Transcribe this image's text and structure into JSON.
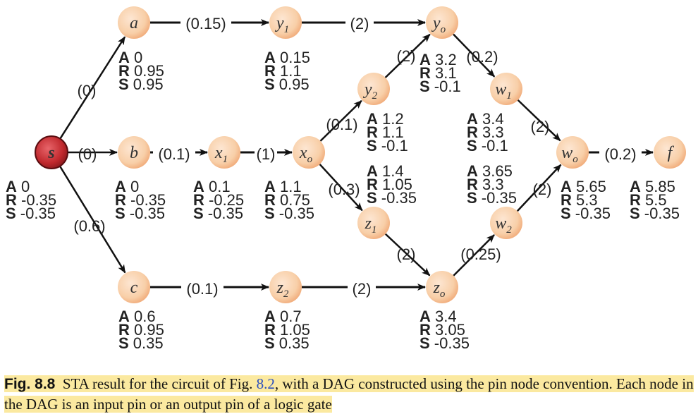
{
  "nodes": [
    {
      "id": "s",
      "base": "s",
      "sub": "",
      "source": true,
      "A": "0",
      "R": "-0.35",
      "S": "-0.35"
    },
    {
      "id": "a",
      "base": "a",
      "sub": "",
      "A": "0",
      "R": "0.95",
      "S": "0.95"
    },
    {
      "id": "b",
      "base": "b",
      "sub": "",
      "A": "0",
      "R": "-0.35",
      "S": "-0.35"
    },
    {
      "id": "c",
      "base": "c",
      "sub": "",
      "A": "0.6",
      "R": "0.95",
      "S": "0.35"
    },
    {
      "id": "y1",
      "base": "y",
      "sub": "1",
      "A": "0.15",
      "R": "1.1",
      "S": "0.95"
    },
    {
      "id": "x1",
      "base": "x",
      "sub": "1",
      "A": "0.1",
      "R": "-0.25",
      "S": "-0.35"
    },
    {
      "id": "z2",
      "base": "z",
      "sub": "2",
      "A": "0.7",
      "R": "1.05",
      "S": "0.35"
    },
    {
      "id": "xo",
      "base": "x",
      "sub": "o",
      "A": "1.1",
      "R": "0.75",
      "S": "-0.35"
    },
    {
      "id": "y2",
      "base": "y",
      "sub": "2",
      "A": "1.2",
      "R": "1.1",
      "S": "-0.1"
    },
    {
      "id": "z1",
      "base": "z",
      "sub": "1",
      "A": "1.4",
      "R": "1.05",
      "S": "-0.35"
    },
    {
      "id": "yo",
      "base": "y",
      "sub": "o",
      "A": "3.2",
      "R": "3.1",
      "S": "-0.1"
    },
    {
      "id": "zo",
      "base": "z",
      "sub": "o",
      "A": "3.4",
      "R": "3.05",
      "S": "-0.35"
    },
    {
      "id": "w1",
      "base": "w",
      "sub": "1",
      "A": "3.4",
      "R": "3.3",
      "S": "-0.1"
    },
    {
      "id": "w2",
      "base": "w",
      "sub": "2",
      "A": "3.65",
      "R": "3.3",
      "S": "-0.35"
    },
    {
      "id": "wo",
      "base": "w",
      "sub": "o",
      "A": "5.65",
      "R": "5.3",
      "S": "-0.35"
    },
    {
      "id": "f",
      "base": "f",
      "sub": "",
      "A": "5.85",
      "R": "5.5",
      "S": "-0.35"
    }
  ],
  "edges": [
    {
      "from": "s",
      "to": "a",
      "delay": "(0)"
    },
    {
      "from": "s",
      "to": "b",
      "delay": "(0)"
    },
    {
      "from": "s",
      "to": "c",
      "delay": "(0.6)"
    },
    {
      "from": "a",
      "to": "y1",
      "delay": "(0.15)"
    },
    {
      "from": "y1",
      "to": "yo",
      "delay": "(2)"
    },
    {
      "from": "b",
      "to": "x1",
      "delay": "(0.1)"
    },
    {
      "from": "x1",
      "to": "xo",
      "delay": "(1)"
    },
    {
      "from": "xo",
      "to": "y2",
      "delay": "(0.1)"
    },
    {
      "from": "xo",
      "to": "z1",
      "delay": "(0.3)"
    },
    {
      "from": "y2",
      "to": "yo",
      "delay": "(2)"
    },
    {
      "from": "z1",
      "to": "zo",
      "delay": "(2)"
    },
    {
      "from": "c",
      "to": "z2",
      "delay": "(0.1)"
    },
    {
      "from": "z2",
      "to": "zo",
      "delay": "(2)"
    },
    {
      "from": "yo",
      "to": "w1",
      "delay": "(0.2)"
    },
    {
      "from": "zo",
      "to": "w2",
      "delay": "(0.25)"
    },
    {
      "from": "w1",
      "to": "wo",
      "delay": "(2)"
    },
    {
      "from": "w2",
      "to": "wo",
      "delay": "(2)"
    },
    {
      "from": "wo",
      "to": "f",
      "delay": "(0.2)"
    }
  ],
  "timing_keys": {
    "arrival": "A",
    "required": "R",
    "slack": "S"
  },
  "caption": {
    "fig_number": "Fig. 8.8",
    "text_before_ref": "STA result for the circuit of Fig.",
    "ref": "8.2",
    "text_after_ref": ", with a DAG constructed using the pin node convention. Each node in the DAG is an input pin or an output pin of a logic gate"
  },
  "colors": {
    "node_fill": "#f8cfa8",
    "node_edge": "#f1ad7c",
    "source_fill": "#c0282d",
    "caption_highlight": "#fbe9a0",
    "edge": "#111111"
  }
}
